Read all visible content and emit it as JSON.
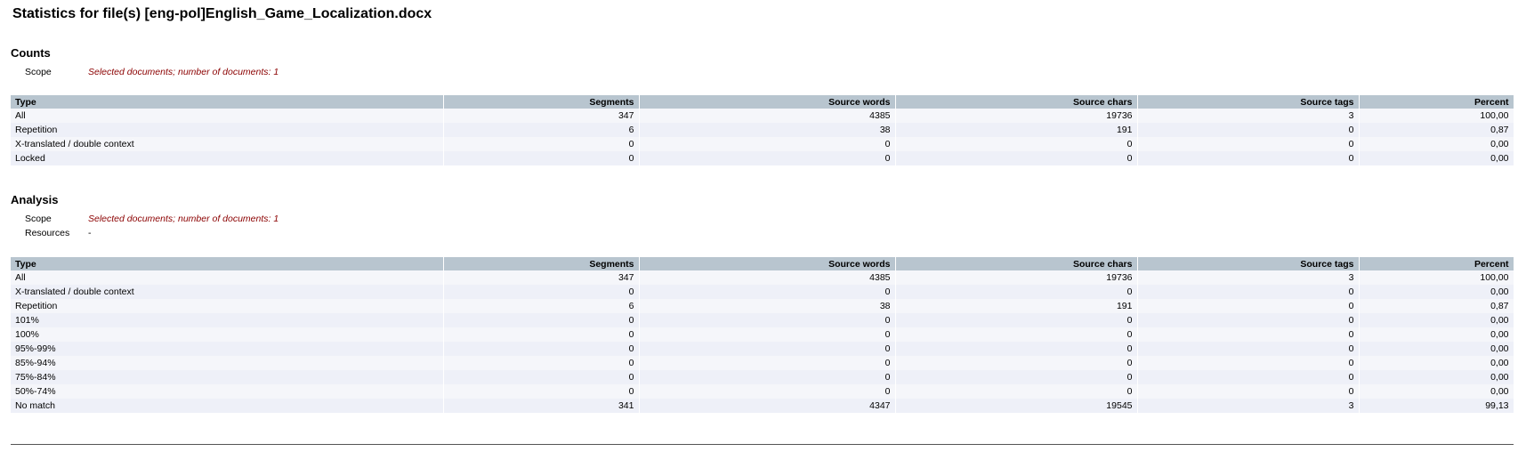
{
  "title": "Statistics for file(s) [eng-pol]English_Game_Localization.docx",
  "counts": {
    "heading": "Counts",
    "scope_label": "Scope",
    "scope_value": "Selected documents; number of documents: 1",
    "columns": [
      "Type",
      "Segments",
      "Source words",
      "Source chars",
      "Source tags",
      "Percent"
    ],
    "rows": [
      [
        "All",
        "347",
        "4385",
        "19736",
        "3",
        "100,00"
      ],
      [
        "Repetition",
        "6",
        "38",
        "191",
        "0",
        "0,87"
      ],
      [
        "X-translated / double context",
        "0",
        "0",
        "0",
        "0",
        "0,00"
      ],
      [
        "Locked",
        "0",
        "0",
        "0",
        "0",
        "0,00"
      ]
    ]
  },
  "analysis": {
    "heading": "Analysis",
    "scope_label": "Scope",
    "scope_value": "Selected documents; number of documents: 1",
    "resources_label": "Resources",
    "resources_value": "-",
    "columns": [
      "Type",
      "Segments",
      "Source words",
      "Source chars",
      "Source tags",
      "Percent"
    ],
    "rows": [
      [
        "All",
        "347",
        "4385",
        "19736",
        "3",
        "100,00"
      ],
      [
        "X-translated / double context",
        "0",
        "0",
        "0",
        "0",
        "0,00"
      ],
      [
        "Repetition",
        "6",
        "38",
        "191",
        "0",
        "0,87"
      ],
      [
        "101%",
        "0",
        "0",
        "0",
        "0",
        "0,00"
      ],
      [
        "100%",
        "0",
        "0",
        "0",
        "0",
        "0,00"
      ],
      [
        "95%-99%",
        "0",
        "0",
        "0",
        "0",
        "0,00"
      ],
      [
        "85%-94%",
        "0",
        "0",
        "0",
        "0",
        "0,00"
      ],
      [
        "75%-84%",
        "0",
        "0",
        "0",
        "0",
        "0,00"
      ],
      [
        "50%-74%",
        "0",
        "0",
        "0",
        "0",
        "0,00"
      ],
      [
        "No match",
        "341",
        "4347",
        "19545",
        "3",
        "99,13"
      ]
    ]
  }
}
